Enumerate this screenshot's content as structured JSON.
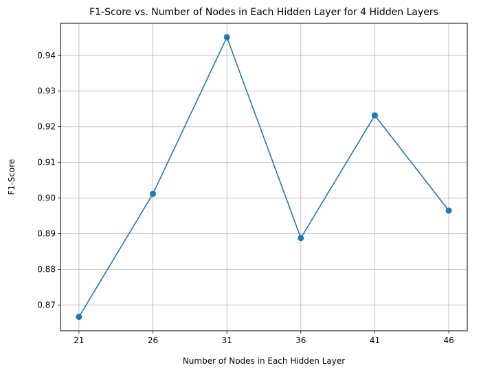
{
  "chart_data": {
    "type": "line",
    "title": "F1-Score vs. Number of Nodes in Each Hidden Layer for 4 Hidden Layers",
    "xlabel": "Number of Nodes in Each Hidden Layer",
    "ylabel": "F1-Score",
    "x": [
      21,
      26,
      31,
      36,
      41,
      46
    ],
    "series": [
      {
        "values": [
          0.8667,
          0.9012,
          0.9451,
          0.8888,
          0.9232,
          0.8965
        ]
      }
    ],
    "xticks": [
      "21",
      "26",
      "31",
      "36",
      "41",
      "46"
    ],
    "yticks": [
      "0.87",
      "0.88",
      "0.89",
      "0.90",
      "0.91",
      "0.92",
      "0.93",
      "0.94"
    ],
    "xlim": [
      19.75,
      47.25
    ],
    "ylim": [
      0.8628,
      0.949
    ],
    "grid": true,
    "markers": true,
    "color": "#1f77b4"
  }
}
